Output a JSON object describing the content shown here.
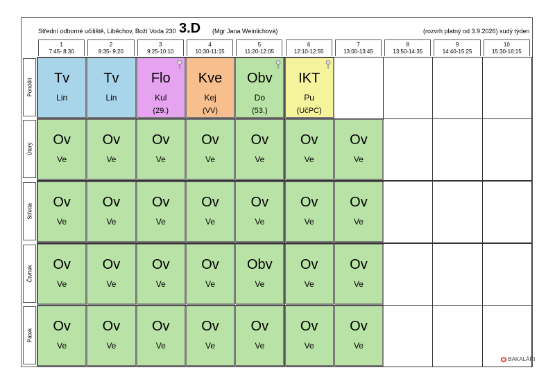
{
  "header": {
    "school": "Střední odborné učiliště, Liběchov, Boží Voda 230",
    "class": "3.D",
    "teacher": "(Mgr Jana Weinlichová)",
    "validity": "(rozvrh platný od 3.9.2026)",
    "week": "sudý týden"
  },
  "periods": [
    {
      "number": "1",
      "time": "7:45- 8:30"
    },
    {
      "number": "2",
      "time": "8:35- 9:20"
    },
    {
      "number": "3",
      "time": "9:25-10:10"
    },
    {
      "number": "4",
      "time": "10:30-11:15"
    },
    {
      "number": "5",
      "time": "11:20-12:05"
    },
    {
      "number": "6",
      "time": "12:10-12:55"
    },
    {
      "number": "7",
      "time": "13:00-13:45"
    },
    {
      "number": "8",
      "time": "13:50-14:35"
    },
    {
      "number": "9",
      "time": "14:40-15:25"
    },
    {
      "number": "10",
      "time": "15:30-16:15"
    }
  ],
  "days": [
    {
      "name": "Pondělí",
      "lessons": [
        {
          "subject": "Tv",
          "teacher": "Lin",
          "color": "#a9d5ea"
        },
        {
          "subject": "Tv",
          "teacher": "Lin",
          "color": "#a9d5ea"
        },
        {
          "subject": "Flo",
          "teacher": "Kul",
          "room": "(29.)",
          "color": "#e6a4f0",
          "pin": true
        },
        {
          "subject": "Kve",
          "teacher": "Kej",
          "room": "(VV)",
          "color": "#f7bf8e"
        },
        {
          "subject": "Obv",
          "teacher": "Do",
          "room": "(53.)",
          "color": "#b9e3a6",
          "pin": true
        },
        {
          "subject": "IKT",
          "teacher": "Pu",
          "room": "(UčPC)",
          "color": "#f5f39b",
          "pin": true
        }
      ]
    },
    {
      "name": "Úterý",
      "lessons": [
        {
          "subject": "Ov",
          "teacher": "Ve",
          "color": "#b9e3a6"
        },
        {
          "subject": "Ov",
          "teacher": "Ve",
          "color": "#b9e3a6"
        },
        {
          "subject": "Ov",
          "teacher": "Ve",
          "color": "#b9e3a6"
        },
        {
          "subject": "Ov",
          "teacher": "Ve",
          "color": "#b9e3a6"
        },
        {
          "subject": "Ov",
          "teacher": "Ve",
          "color": "#b9e3a6"
        },
        {
          "subject": "Ov",
          "teacher": "Ve",
          "color": "#b9e3a6"
        },
        {
          "subject": "Ov",
          "teacher": "Ve",
          "color": "#b9e3a6"
        }
      ]
    },
    {
      "name": "Středa",
      "lessons": [
        {
          "subject": "Ov",
          "teacher": "Ve",
          "color": "#b9e3a6"
        },
        {
          "subject": "Ov",
          "teacher": "Ve",
          "color": "#b9e3a6"
        },
        {
          "subject": "Ov",
          "teacher": "Ve",
          "color": "#b9e3a6"
        },
        {
          "subject": "Ov",
          "teacher": "Ve",
          "color": "#b9e3a6"
        },
        {
          "subject": "Ov",
          "teacher": "Ve",
          "color": "#b9e3a6"
        },
        {
          "subject": "Ov",
          "teacher": "Ve",
          "color": "#b9e3a6"
        },
        {
          "subject": "Ov",
          "teacher": "Ve",
          "color": "#b9e3a6"
        }
      ]
    },
    {
      "name": "Čtvrtek",
      "lessons": [
        {
          "subject": "Ov",
          "teacher": "Ve",
          "color": "#b9e3a6"
        },
        {
          "subject": "Ov",
          "teacher": "Ve",
          "color": "#b9e3a6"
        },
        {
          "subject": "Ov",
          "teacher": "Ve",
          "color": "#b9e3a6"
        },
        {
          "subject": "Ov",
          "teacher": "Ve",
          "color": "#b9e3a6"
        },
        {
          "subject": "Obv",
          "teacher": "Ve",
          "color": "#b9e3a6"
        },
        {
          "subject": "Ov",
          "teacher": "Ve",
          "color": "#b9e3a6"
        },
        {
          "subject": "Ov",
          "teacher": "Ve",
          "color": "#b9e3a6"
        }
      ]
    },
    {
      "name": "Pátek",
      "lessons": [
        {
          "subject": "Ov",
          "teacher": "Ve",
          "color": "#b9e3a6"
        },
        {
          "subject": "Ov",
          "teacher": "Ve",
          "color": "#b9e3a6"
        },
        {
          "subject": "Ov",
          "teacher": "Ve",
          "color": "#b9e3a6"
        },
        {
          "subject": "Ov",
          "teacher": "Ve",
          "color": "#b9e3a6"
        },
        {
          "subject": "Ov",
          "teacher": "Ve",
          "color": "#b9e3a6"
        },
        {
          "subject": "Ov",
          "teacher": "Ve",
          "color": "#b9e3a6"
        },
        {
          "subject": "Ov",
          "teacher": "Ve",
          "color": "#b9e3a6"
        }
      ]
    }
  ],
  "footer": {
    "logo": "BAKALÁŘI"
  }
}
